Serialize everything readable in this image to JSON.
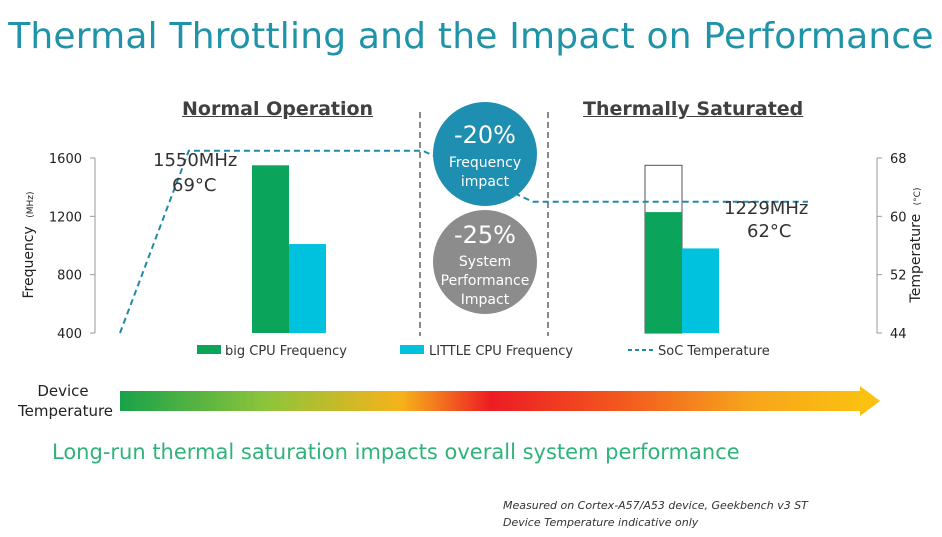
{
  "title": "Thermal Throttling and the Impact on Performance",
  "sections": {
    "left": "Normal Operation",
    "right": "Thermally Saturated"
  },
  "colors": {
    "big": "#0aa55a",
    "little": "#00c2df",
    "temp": "#1f8aa6",
    "bubble_top": "#1e8fb0",
    "bubble_bottom": "#8c8c8c",
    "title": "#1f93a8"
  },
  "chart_data": {
    "type": "bar",
    "y_left": {
      "label": "Frequency",
      "unit": "(MHz)",
      "ticks": [
        1600,
        1200,
        800,
        400
      ],
      "ylim": [
        400,
        1600
      ]
    },
    "y_right": {
      "label": "Temperature",
      "unit": "(°C)",
      "ticks": [
        68,
        60,
        52,
        44
      ],
      "ylim": [
        44,
        68
      ]
    },
    "groups": [
      {
        "name": "Normal Operation",
        "big": 1550,
        "little": 1010
      },
      {
        "name": "Thermally Saturated",
        "big": 1229,
        "little": 980,
        "big_outline": 1550
      }
    ],
    "temperature_series": [
      {
        "t": 0.0,
        "v": 44
      },
      {
        "t": 0.1,
        "v": 69
      },
      {
        "t": 0.44,
        "v": 69
      },
      {
        "t": 0.6,
        "v": 62
      },
      {
        "t": 1.0,
        "v": 62
      }
    ],
    "annotations": {
      "normal_freq": "1550MHz",
      "normal_temp": "69°C",
      "saturated_freq": "1229MHz",
      "saturated_temp": "62°C"
    },
    "legend": [
      "big CPU Frequency",
      "LITTLE CPU Frequency",
      "SoC Temperature"
    ]
  },
  "bubbles": {
    "top": {
      "big": "-20%",
      "line1": "Frequency",
      "line2": "impact"
    },
    "bottom": {
      "big": "-25%",
      "line1": "System",
      "line2": "Performance",
      "line3": "Impact"
    }
  },
  "device_temp_label_1": "Device",
  "device_temp_label_2": "Temperature",
  "tagline": "Long-run thermal saturation impacts overall system performance",
  "note_1": "Measured on Cortex-A57/A53 device, Geekbench v3 ST",
  "note_2": "Device Temperature indicative only"
}
